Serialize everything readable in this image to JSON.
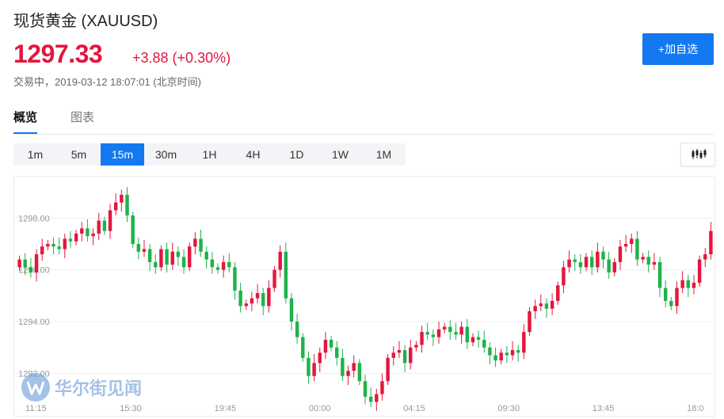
{
  "header": {
    "title": "现货黄金 (XAUUSD)",
    "price": "1297.33",
    "change": "+3.88 (+0.30%)",
    "status": "交易中，2019-03-12 18:07:01 (北京时间)",
    "add_button": "+加自选"
  },
  "tabs": [
    {
      "label": "概览",
      "active": true
    },
    {
      "label": "图表",
      "active": false
    }
  ],
  "periods": [
    {
      "label": "1m",
      "active": false
    },
    {
      "label": "5m",
      "active": false
    },
    {
      "label": "15m",
      "active": true
    },
    {
      "label": "30m",
      "active": false
    },
    {
      "label": "1H",
      "active": false
    },
    {
      "label": "4H",
      "active": false
    },
    {
      "label": "1D",
      "active": false
    },
    {
      "label": "1W",
      "active": false
    },
    {
      "label": "1M",
      "active": false
    }
  ],
  "chart_type_icon": "candlestick-icon",
  "watermark": {
    "text": "华尔街见闻",
    "icon": "wallstreetcn-logo-icon"
  },
  "colors": {
    "up": "#e3173e",
    "down": "#1fb24a",
    "accent": "#1478f0"
  },
  "chart_data": {
    "type": "candlestick",
    "y_ticks": [
      "1298.00",
      "1296.00",
      "1294.00",
      "1292.00"
    ],
    "y_tick_values": [
      1298,
      1296,
      1294,
      1292
    ],
    "ylim": [
      1290.3,
      1299.6
    ],
    "x_ticks": [
      "11:15",
      "15:30",
      "19:45",
      "00:00",
      "04:15",
      "09:30",
      "13:45",
      "18:0"
    ],
    "grid": true,
    "closes": [
      1296.4,
      1296.1,
      1295.9,
      1296.6,
      1296.9,
      1297.0,
      1296.9,
      1296.8,
      1297.2,
      1297.1,
      1297.4,
      1297.6,
      1297.3,
      1297.4,
      1297.9,
      1297.5,
      1298.3,
      1298.6,
      1298.9,
      1298.1,
      1297.0,
      1296.7,
      1296.8,
      1296.3,
      1296.1,
      1296.8,
      1296.2,
      1296.7,
      1296.5,
      1296.1,
      1296.9,
      1297.2,
      1296.7,
      1296.4,
      1296.1,
      1296.0,
      1296.3,
      1296.1,
      1295.2,
      1294.6,
      1294.7,
      1294.9,
      1295.1,
      1294.6,
      1295.3,
      1296.0,
      1296.7,
      1294.9,
      1294.0,
      1293.4,
      1292.6,
      1291.9,
      1292.4,
      1292.8,
      1293.3,
      1293.0,
      1292.6,
      1291.9,
      1292.1,
      1292.4,
      1291.7,
      1291.1,
      1290.9,
      1291.2,
      1291.7,
      1292.6,
      1292.8,
      1292.9,
      1292.4,
      1293.0,
      1293.1,
      1293.6,
      1293.5,
      1293.4,
      1293.7,
      1293.8,
      1293.6,
      1293.5,
      1293.8,
      1293.2,
      1293.4,
      1293.3,
      1293.0,
      1292.7,
      1292.5,
      1292.8,
      1292.7,
      1292.9,
      1292.8,
      1293.6,
      1294.4,
      1294.6,
      1294.7,
      1294.5,
      1294.8,
      1295.4,
      1296.1,
      1296.4,
      1296.3,
      1296.1,
      1296.5,
      1296.1,
      1296.7,
      1296.4,
      1295.9,
      1296.3,
      1296.9,
      1297.0,
      1297.2,
      1296.4,
      1296.5,
      1296.2,
      1296.3,
      1295.3,
      1294.8,
      1294.6,
      1295.3,
      1295.6,
      1295.3,
      1295.5,
      1296.4,
      1296.6,
      1297.5
    ]
  }
}
